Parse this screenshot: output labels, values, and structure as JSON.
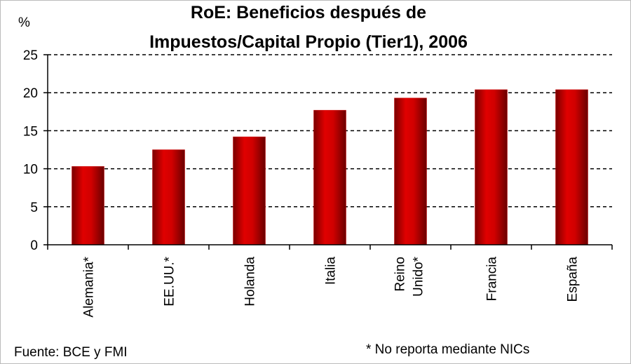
{
  "chart_data": {
    "type": "bar",
    "title": [
      "RoE: Beneficios después de",
      "Impuestos/Capital Propio (Tier1), 2006"
    ],
    "y_label": "%",
    "categories": [
      "Alemania*",
      "EE.UU.*",
      "Holanda",
      "Italia",
      [
        "Reino",
        "Unido*"
      ],
      "Francia",
      "España"
    ],
    "values": [
      10.3,
      12.5,
      14.2,
      17.7,
      19.3,
      20.4,
      20.4
    ],
    "color": "#cc0000",
    "ylim": [
      0,
      25
    ],
    "yticks": [
      0,
      5,
      10,
      15,
      20,
      25
    ],
    "grid": true,
    "source": "Fuente: BCE y FMI",
    "note": "* No reporta mediante NICs"
  }
}
